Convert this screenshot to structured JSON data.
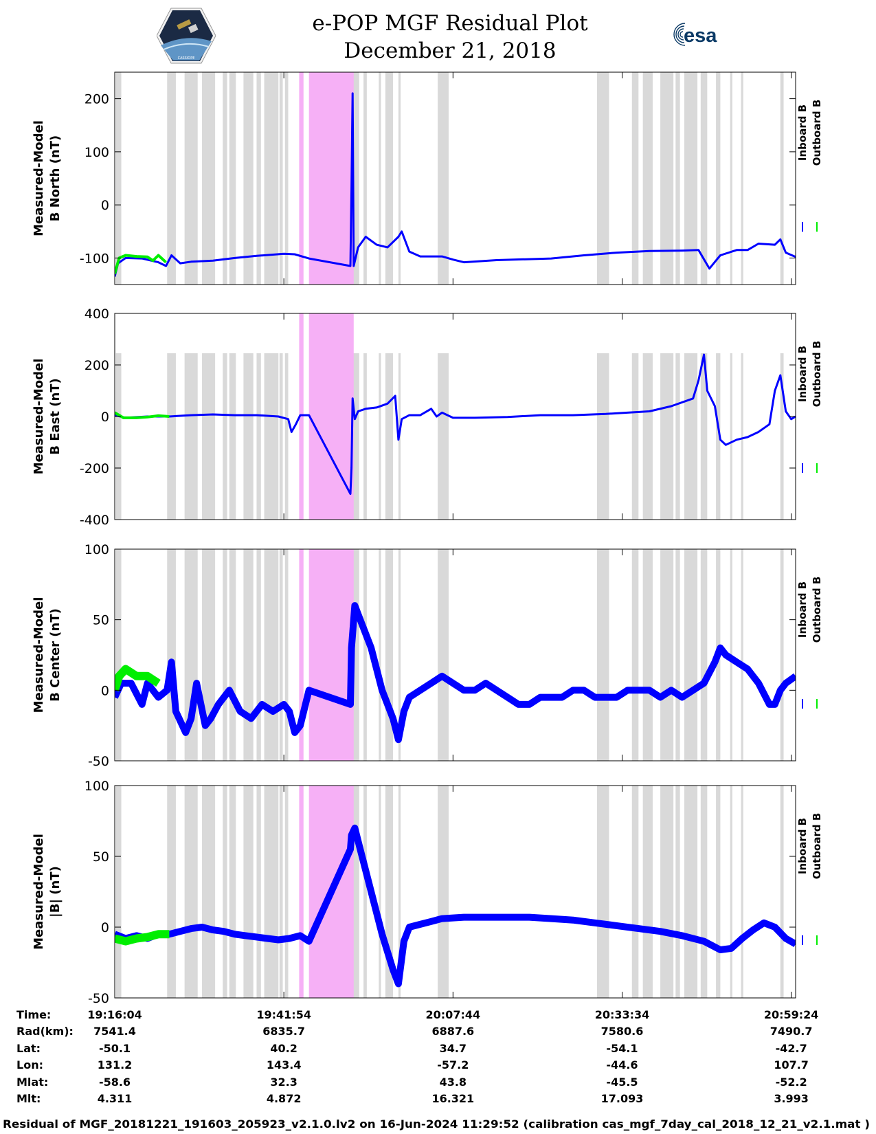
{
  "header": {
    "title_line1": "e-POP MGF Residual Plot",
    "title_line2": "December 21, 2018",
    "left_logo": "cassiope-logo",
    "right_logo_text": "esa"
  },
  "colors": {
    "inboard": "#0000ff",
    "outboard": "#00ee00",
    "gap_shade": "#d9d9d9",
    "highlight": "#f6b0f6"
  },
  "chart_data": {
    "type": "line",
    "x_range": [
      0,
      6240
    ],
    "x_ticks": [
      0,
      1550,
      3100,
      4650,
      6200
    ],
    "gray_bands": [
      [
        10,
        60
      ],
      [
        480,
        560
      ],
      [
        640,
        760
      ],
      [
        800,
        920
      ],
      [
        990,
        1030
      ],
      [
        1050,
        1110
      ],
      [
        1180,
        1270
      ],
      [
        1300,
        1340
      ],
      [
        1370,
        1500
      ],
      [
        1510,
        1540
      ],
      [
        1560,
        1590
      ],
      [
        2180,
        2240
      ],
      [
        2280,
        2310
      ],
      [
        2420,
        2440
      ],
      [
        2480,
        2550
      ],
      [
        2600,
        2620
      ],
      [
        2960,
        3060
      ],
      [
        4420,
        4530
      ],
      [
        4740,
        4800
      ],
      [
        4840,
        4930
      ],
      [
        5000,
        5120
      ],
      [
        5140,
        5180
      ],
      [
        5220,
        5340
      ],
      [
        5370,
        5430
      ],
      [
        5510,
        5550
      ],
      [
        5640,
        5660
      ],
      [
        5740,
        5760
      ],
      [
        6100,
        6130
      ]
    ],
    "pink_bands": [
      [
        1690,
        1730
      ],
      [
        1780,
        2190
      ]
    ],
    "legend": [
      "Inboard B",
      "Outboard B"
    ],
    "panels": [
      {
        "ylabel_line1": "Measured-Model",
        "ylabel_line2": "B North (nT)",
        "ylim": [
          -150,
          250
        ],
        "ytick_values": [
          -100,
          0,
          100,
          200
        ],
        "ytick_labels": [
          "-100",
          "0",
          "100",
          "200"
        ],
        "inboard": [
          [
            0,
            -135
          ],
          [
            30,
            -110
          ],
          [
            100,
            -100
          ],
          [
            250,
            -101
          ],
          [
            400,
            -108
          ],
          [
            470,
            -115
          ],
          [
            520,
            -95
          ],
          [
            600,
            -110
          ],
          [
            700,
            -107
          ],
          [
            900,
            -105
          ],
          [
            1100,
            -100
          ],
          [
            1300,
            -96
          ],
          [
            1550,
            -92
          ],
          [
            1650,
            -93
          ],
          [
            1780,
            -101
          ],
          [
            2160,
            -115
          ],
          [
            2170,
            30
          ],
          [
            2180,
            210
          ],
          [
            2190,
            -115
          ],
          [
            2230,
            -80
          ],
          [
            2300,
            -60
          ],
          [
            2400,
            -75
          ],
          [
            2500,
            -80
          ],
          [
            2600,
            -60
          ],
          [
            2630,
            -50
          ],
          [
            2700,
            -88
          ],
          [
            2800,
            -97
          ],
          [
            3000,
            -97
          ],
          [
            3100,
            -103
          ],
          [
            3200,
            -108
          ],
          [
            3500,
            -104
          ],
          [
            4000,
            -101
          ],
          [
            4300,
            -95
          ],
          [
            4600,
            -90
          ],
          [
            4900,
            -87
          ],
          [
            5200,
            -86
          ],
          [
            5350,
            -85
          ],
          [
            5450,
            -120
          ],
          [
            5550,
            -95
          ],
          [
            5700,
            -85
          ],
          [
            5800,
            -85
          ],
          [
            5900,
            -73
          ],
          [
            6050,
            -75
          ],
          [
            6100,
            -65
          ],
          [
            6150,
            -90
          ],
          [
            6240,
            -98
          ]
        ],
        "outboard": [
          [
            0,
            -130
          ],
          [
            40,
            -100
          ],
          [
            100,
            -95
          ],
          [
            200,
            -97
          ],
          [
            300,
            -98
          ],
          [
            350,
            -105
          ],
          [
            400,
            -95
          ],
          [
            470,
            -108
          ]
        ]
      },
      {
        "ylabel_line1": "Measured-Model",
        "ylabel_line2": "B East (nT)",
        "ylim": [
          -400,
          400
        ],
        "ytick_values": [
          -400,
          -200,
          0,
          200,
          400
        ],
        "ytick_labels": [
          "-400",
          "-200",
          "0",
          "200",
          "400"
        ],
        "inboard": [
          [
            0,
            5
          ],
          [
            100,
            -5
          ],
          [
            300,
            0
          ],
          [
            500,
            0
          ],
          [
            700,
            5
          ],
          [
            900,
            8
          ],
          [
            1100,
            5
          ],
          [
            1300,
            5
          ],
          [
            1500,
            0
          ],
          [
            1590,
            -10
          ],
          [
            1620,
            -60
          ],
          [
            1660,
            -30
          ],
          [
            1700,
            5
          ],
          [
            1780,
            5
          ],
          [
            2160,
            -300
          ],
          [
            2170,
            -200
          ],
          [
            2180,
            70
          ],
          [
            2200,
            -10
          ],
          [
            2230,
            20
          ],
          [
            2300,
            30
          ],
          [
            2400,
            35
          ],
          [
            2500,
            50
          ],
          [
            2570,
            80
          ],
          [
            2600,
            -90
          ],
          [
            2630,
            -10
          ],
          [
            2700,
            5
          ],
          [
            2800,
            5
          ],
          [
            2900,
            30
          ],
          [
            2950,
            0
          ],
          [
            3000,
            15
          ],
          [
            3100,
            -5
          ],
          [
            3300,
            -5
          ],
          [
            3600,
            -2
          ],
          [
            3900,
            5
          ],
          [
            4200,
            5
          ],
          [
            4500,
            10
          ],
          [
            4700,
            15
          ],
          [
            4900,
            20
          ],
          [
            5100,
            40
          ],
          [
            5300,
            70
          ],
          [
            5350,
            140
          ],
          [
            5400,
            240
          ],
          [
            5430,
            100
          ],
          [
            5500,
            40
          ],
          [
            5550,
            -90
          ],
          [
            5600,
            -110
          ],
          [
            5700,
            -90
          ],
          [
            5800,
            -80
          ],
          [
            5900,
            -60
          ],
          [
            6000,
            -30
          ],
          [
            6050,
            100
          ],
          [
            6100,
            160
          ],
          [
            6150,
            20
          ],
          [
            6200,
            -10
          ],
          [
            6240,
            0
          ]
        ],
        "outboard": [
          [
            0,
            15
          ],
          [
            80,
            -5
          ],
          [
            200,
            -5
          ],
          [
            300,
            -2
          ],
          [
            400,
            3
          ],
          [
            500,
            0
          ]
        ]
      },
      {
        "ylabel_line1": "Measured-Model",
        "ylabel_line2": "B Center (nT)",
        "ylim": [
          -50,
          100
        ],
        "ytick_values": [
          -50,
          0,
          50,
          100
        ],
        "ytick_labels": [
          "-50",
          "0",
          "50",
          "100"
        ],
        "inboard": [
          [
            0,
            -5
          ],
          [
            30,
            0
          ],
          [
            60,
            5
          ],
          [
            150,
            5
          ],
          [
            250,
            -10
          ],
          [
            300,
            5
          ],
          [
            400,
            -5
          ],
          [
            480,
            0
          ],
          [
            520,
            20
          ],
          [
            560,
            -15
          ],
          [
            650,
            -30
          ],
          [
            700,
            -20
          ],
          [
            750,
            5
          ],
          [
            830,
            -25
          ],
          [
            880,
            -20
          ],
          [
            950,
            -10
          ],
          [
            1050,
            0
          ],
          [
            1150,
            -15
          ],
          [
            1250,
            -20
          ],
          [
            1350,
            -10
          ],
          [
            1450,
            -15
          ],
          [
            1550,
            -10
          ],
          [
            1600,
            -15
          ],
          [
            1650,
            -30
          ],
          [
            1700,
            -25
          ],
          [
            1780,
            0
          ],
          [
            2160,
            -10
          ],
          [
            2170,
            30
          ],
          [
            2200,
            60
          ],
          [
            2250,
            50
          ],
          [
            2350,
            30
          ],
          [
            2450,
            0
          ],
          [
            2550,
            -20
          ],
          [
            2600,
            -35
          ],
          [
            2650,
            -15
          ],
          [
            2700,
            -5
          ],
          [
            2800,
            0
          ],
          [
            2900,
            5
          ],
          [
            3000,
            10
          ],
          [
            3100,
            5
          ],
          [
            3200,
            0
          ],
          [
            3300,
            0
          ],
          [
            3400,
            5
          ],
          [
            3500,
            0
          ],
          [
            3600,
            -5
          ],
          [
            3700,
            -10
          ],
          [
            3800,
            -10
          ],
          [
            3900,
            -5
          ],
          [
            4000,
            -5
          ],
          [
            4100,
            -5
          ],
          [
            4200,
            0
          ],
          [
            4300,
            0
          ],
          [
            4400,
            -5
          ],
          [
            4500,
            -5
          ],
          [
            4600,
            -5
          ],
          [
            4700,
            0
          ],
          [
            4800,
            0
          ],
          [
            4900,
            0
          ],
          [
            5000,
            -5
          ],
          [
            5100,
            0
          ],
          [
            5200,
            -5
          ],
          [
            5300,
            0
          ],
          [
            5400,
            5
          ],
          [
            5500,
            20
          ],
          [
            5550,
            30
          ],
          [
            5600,
            25
          ],
          [
            5700,
            20
          ],
          [
            5800,
            15
          ],
          [
            5900,
            5
          ],
          [
            6000,
            -10
          ],
          [
            6050,
            -10
          ],
          [
            6100,
            0
          ],
          [
            6150,
            5
          ],
          [
            6240,
            10
          ]
        ],
        "outboard": [
          [
            0,
            0
          ],
          [
            40,
            10
          ],
          [
            100,
            15
          ],
          [
            200,
            10
          ],
          [
            300,
            10
          ],
          [
            400,
            5
          ]
        ]
      },
      {
        "ylabel_line1": "Measured-Model",
        "ylabel_line2": "|B| (nT)",
        "ylim": [
          -50,
          100
        ],
        "ytick_values": [
          -50,
          0,
          50,
          100
        ],
        "ytick_labels": [
          "-50",
          "0",
          "50",
          "100"
        ],
        "inboard": [
          [
            0,
            -5
          ],
          [
            100,
            -8
          ],
          [
            200,
            -6
          ],
          [
            300,
            -8
          ],
          [
            400,
            -5
          ],
          [
            500,
            -5
          ],
          [
            600,
            -3
          ],
          [
            700,
            -1
          ],
          [
            800,
            0
          ],
          [
            900,
            -2
          ],
          [
            1000,
            -3
          ],
          [
            1100,
            -5
          ],
          [
            1200,
            -6
          ],
          [
            1300,
            -7
          ],
          [
            1400,
            -8
          ],
          [
            1500,
            -9
          ],
          [
            1600,
            -8
          ],
          [
            1700,
            -6
          ],
          [
            1780,
            -10
          ],
          [
            2160,
            55
          ],
          [
            2170,
            65
          ],
          [
            2200,
            70
          ],
          [
            2250,
            55
          ],
          [
            2350,
            25
          ],
          [
            2450,
            -5
          ],
          [
            2550,
            -30
          ],
          [
            2600,
            -40
          ],
          [
            2650,
            -10
          ],
          [
            2700,
            0
          ],
          [
            2800,
            2
          ],
          [
            2900,
            4
          ],
          [
            3000,
            6
          ],
          [
            3200,
            7
          ],
          [
            3400,
            7
          ],
          [
            3600,
            7
          ],
          [
            3800,
            7
          ],
          [
            4000,
            6
          ],
          [
            4200,
            5
          ],
          [
            4400,
            3
          ],
          [
            4600,
            1
          ],
          [
            4800,
            -1
          ],
          [
            5000,
            -3
          ],
          [
            5200,
            -6
          ],
          [
            5400,
            -10
          ],
          [
            5550,
            -16
          ],
          [
            5650,
            -15
          ],
          [
            5750,
            -8
          ],
          [
            5850,
            -2
          ],
          [
            5950,
            3
          ],
          [
            6050,
            0
          ],
          [
            6150,
            -8
          ],
          [
            6240,
            -12
          ]
        ],
        "outboard": [
          [
            0,
            -8
          ],
          [
            100,
            -10
          ],
          [
            200,
            -8
          ],
          [
            300,
            -7
          ],
          [
            400,
            -5
          ],
          [
            500,
            -5
          ]
        ]
      }
    ]
  },
  "info_table": {
    "labels": [
      "Time:",
      "Rad(km):",
      "Lat:",
      "Lon:",
      "Mlat:",
      "Mlt:"
    ],
    "columns": [
      [
        "19:16:04",
        "7541.4",
        "-50.1",
        "131.2",
        "-58.6",
        "4.311"
      ],
      [
        "19:41:54",
        "6835.7",
        "40.2",
        "143.4",
        "32.3",
        "4.872"
      ],
      [
        "20:07:44",
        "6887.6",
        "34.7",
        "-57.2",
        "43.8",
        "16.321"
      ],
      [
        "20:33:34",
        "7580.6",
        "-54.1",
        "-44.6",
        "-45.5",
        "17.093"
      ],
      [
        "20:59:24",
        "7490.7",
        "-42.7",
        "107.7",
        "-52.2",
        "3.993"
      ]
    ]
  },
  "footer": "Residual of MGF_20181221_191603_205923_v2.1.0.lv2 on 16-Jun-2024 11:29:52 (calibration cas_mgf_7day_cal_2018_12_21_v2.1.mat )"
}
